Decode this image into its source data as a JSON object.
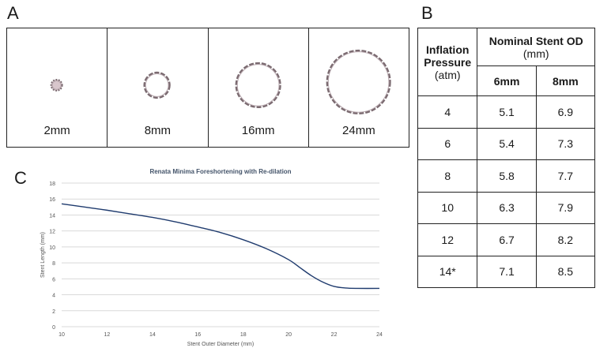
{
  "panels": {
    "a": "A",
    "b": "B",
    "c": "C"
  },
  "stent_images": [
    {
      "label": "2mm",
      "diameter": 2
    },
    {
      "label": "8mm",
      "diameter": 8
    },
    {
      "label": "16mm",
      "diameter": 16
    },
    {
      "label": "24mm",
      "diameter": 24
    }
  ],
  "table": {
    "corner_header": [
      "Inflation",
      "Pressure",
      "(atm)"
    ],
    "group_header": [
      "Nominal Stent OD",
      "(mm)"
    ],
    "col_headers": [
      "6mm",
      "8mm"
    ],
    "rows": [
      [
        "4",
        "5.1",
        "6.9"
      ],
      [
        "6",
        "5.4",
        "7.3"
      ],
      [
        "8",
        "5.8",
        "7.7"
      ],
      [
        "10",
        "6.3",
        "7.9"
      ],
      [
        "12",
        "6.7",
        "8.2"
      ],
      [
        "14*",
        "7.1",
        "8.5"
      ]
    ]
  },
  "chart_data": {
    "type": "line",
    "title": "Renata Minima Foreshortening with Re-dilation",
    "xlabel": "Stent Outer Diameter (mm)",
    "ylabel": "Stent Length (mm)",
    "xlim": [
      10,
      24
    ],
    "ylim": [
      0,
      18
    ],
    "xticks": [
      "10",
      "12",
      "14",
      "16",
      "18",
      "20",
      "22",
      "24"
    ],
    "yticks": [
      "0",
      "2",
      "4",
      "6",
      "8",
      "10",
      "12",
      "14",
      "16",
      "18"
    ],
    "grid": true,
    "series": [
      {
        "color": "#1f3b6e",
        "x": [
          10,
          11,
          12,
          13,
          14,
          15,
          16,
          17,
          18,
          19,
          20,
          20.5,
          21,
          21.5,
          22,
          22.5,
          23,
          24
        ],
        "y": [
          15.4,
          15.0,
          14.6,
          14.15,
          13.7,
          13.15,
          12.5,
          11.8,
          10.9,
          9.8,
          8.4,
          7.4,
          6.4,
          5.6,
          5.05,
          4.85,
          4.8,
          4.8
        ]
      }
    ]
  }
}
